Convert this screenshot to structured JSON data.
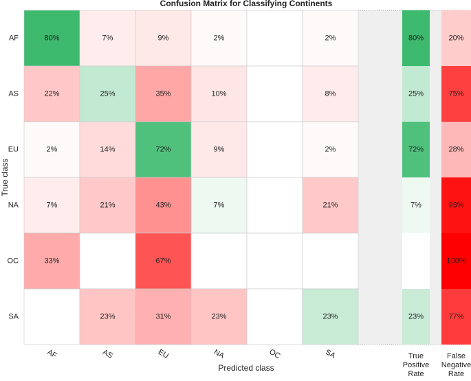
{
  "chart_data": {
    "type": "heatmap",
    "title": "Confusion Matrix for Classifying Continents",
    "xlabel": "Predicted class",
    "ylabel": "True class",
    "x_categories": [
      "AF",
      "AS",
      "EU",
      "NA",
      "OC",
      "SA"
    ],
    "y_categories": [
      "AF",
      "AS",
      "EU",
      "NA",
      "OC",
      "SA"
    ],
    "values": [
      [
        80,
        7,
        9,
        2,
        null,
        2
      ],
      [
        22,
        25,
        35,
        10,
        null,
        8
      ],
      [
        2,
        14,
        72,
        9,
        null,
        2
      ],
      [
        7,
        21,
        43,
        7,
        null,
        21
      ],
      [
        33,
        null,
        67,
        null,
        null,
        null
      ],
      [
        null,
        23,
        31,
        23,
        null,
        23
      ]
    ],
    "value_labels": [
      [
        "80%",
        "7%",
        "9%",
        "2%",
        null,
        "2%"
      ],
      [
        "22%",
        "25%",
        "35%",
        "10%",
        null,
        "8%"
      ],
      [
        "2%",
        "14%",
        "72%",
        "9%",
        null,
        "2%"
      ],
      [
        "7%",
        "21%",
        "43%",
        "7%",
        null,
        "21%"
      ],
      [
        "33%",
        null,
        "67%",
        null,
        null,
        null
      ],
      [
        null,
        "23%",
        "31%",
        "23%",
        null,
        "23%"
      ]
    ],
    "positive_color": "#0ca94a",
    "negative_color": "#ff0000",
    "summary_columns": [
      {
        "name": "True Positive Rate",
        "kind": "positive",
        "values": [
          80,
          25,
          72,
          7,
          null,
          23
        ],
        "value_labels": [
          "80%",
          "25%",
          "72%",
          "7%",
          null,
          "23%"
        ]
      },
      {
        "name": "False Negative Rate",
        "kind": "negative",
        "values": [
          20,
          75,
          28,
          93,
          100,
          77
        ],
        "value_labels": [
          "20%",
          "75%",
          "28%",
          "93%",
          "100%",
          "77%"
        ]
      }
    ]
  }
}
